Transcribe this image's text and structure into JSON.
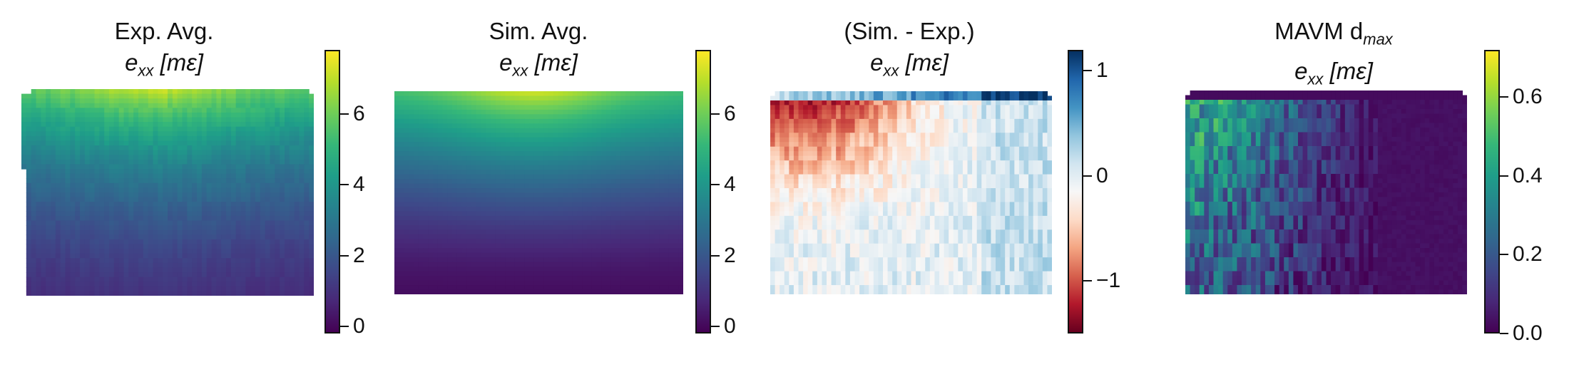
{
  "chart_data": [
    {
      "type": "heatmap",
      "title_line1": "Exp. Avg.",
      "title_line2_base": "e",
      "title_line2_sub": "xx",
      "title_line2_unit": "[mε]",
      "colormap": "viridis",
      "colorbar_range": [
        -0.2,
        7.8
      ],
      "colorbar_ticks": [
        "0",
        "2",
        "4",
        "6"
      ],
      "colorbar_tick_values": [
        0,
        2,
        4,
        6
      ]
    },
    {
      "type": "heatmap",
      "title_line1": "Sim. Avg.",
      "title_line2_base": "e",
      "title_line2_sub": "xx",
      "title_line2_unit": "[mε]",
      "colormap": "viridis",
      "colorbar_range": [
        -0.2,
        7.8
      ],
      "colorbar_ticks": [
        "0",
        "2",
        "4",
        "6"
      ],
      "colorbar_tick_values": [
        0,
        2,
        4,
        6
      ]
    },
    {
      "type": "heatmap",
      "title_line1": "(Sim. - Exp.)",
      "title_line2_base": "e",
      "title_line2_sub": "xx",
      "title_line2_unit": "[mε]",
      "colormap": "RdBu",
      "colorbar_range": [
        -1.5,
        1.2
      ],
      "colorbar_ticks": [
        "−1",
        "0",
        "1"
      ],
      "colorbar_tick_values": [
        -1,
        0,
        1
      ]
    },
    {
      "type": "heatmap",
      "title_line1": "MAVM d",
      "title_line1_sub": "max",
      "title_line2_base": "e",
      "title_line2_sub": "xx",
      "title_line2_unit": "[mε]",
      "colormap": "viridis",
      "colorbar_range": [
        0.0,
        0.72
      ],
      "colorbar_ticks": [
        "0.0",
        "0.2",
        "0.4",
        "0.6"
      ],
      "colorbar_tick_values": [
        0.0,
        0.2,
        0.4,
        0.6
      ]
    }
  ]
}
